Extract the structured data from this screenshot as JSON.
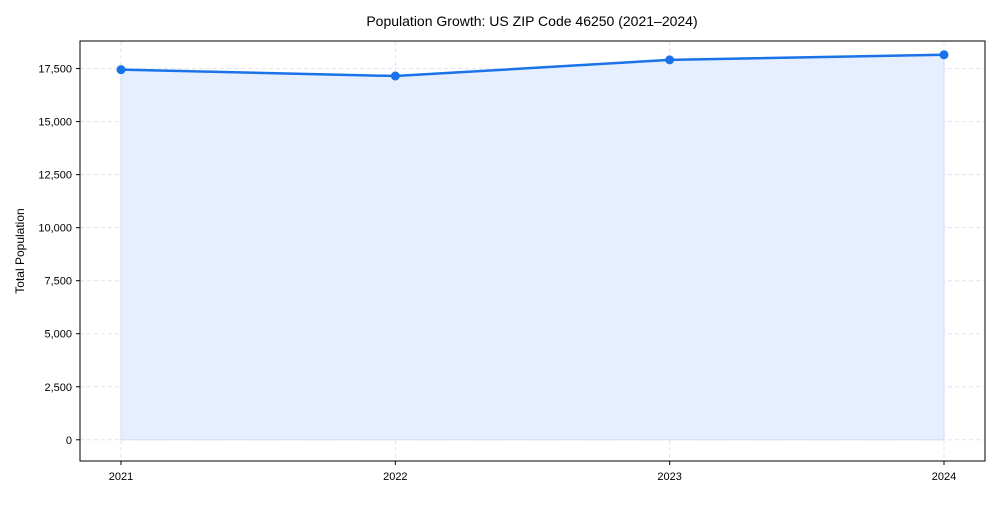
{
  "chart_data": {
    "type": "area",
    "title": "Population Growth: US ZIP Code 46250 (2021–2024)",
    "xlabel": "",
    "ylabel": "Total Population",
    "categories": [
      "2021",
      "2022",
      "2023",
      "2024"
    ],
    "values": [
      17450,
      17150,
      17910,
      18150
    ],
    "ylim": [
      -1000,
      18800
    ],
    "yticks": [
      0,
      2500,
      5000,
      7500,
      10000,
      12500,
      15000,
      17500
    ],
    "ytick_labels": [
      "0",
      "2,500",
      "5,000",
      "7,500",
      "10,000",
      "12,500",
      "15,000",
      "17,500"
    ],
    "grid": true,
    "colors": {
      "line": "#1a73e8",
      "fill": "#e5efff",
      "grid": "#dfe3ea"
    }
  }
}
